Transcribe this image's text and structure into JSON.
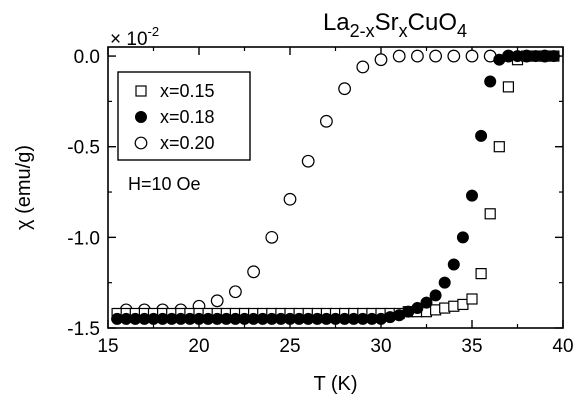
{
  "chart_data": {
    "type": "scatter",
    "title": {
      "parts": [
        {
          "text": "La",
          "shift": "base"
        },
        {
          "text": "2-x",
          "shift": "sub"
        },
        {
          "text": "Sr",
          "shift": "base"
        },
        {
          "text": "x",
          "shift": "sub"
        },
        {
          "text": "CuO",
          "shift": "base"
        },
        {
          "text": "4",
          "shift": "sub"
        }
      ]
    },
    "xlabel": "T (K)",
    "ylabel": "χ (emu/g)",
    "y_multiplier": {
      "prefix": "× 10",
      "exponent": "-2"
    },
    "xlim": [
      15,
      40
    ],
    "ylim": [
      -1.5,
      0.05
    ],
    "x_ticks": [
      15,
      20,
      25,
      30,
      35,
      40
    ],
    "x_tick_labels": [
      "15",
      "20",
      "25",
      "30",
      "35",
      "40"
    ],
    "y_ticks": [
      0.0,
      -0.5,
      -1.0,
      -1.5
    ],
    "y_tick_labels": [
      "0.0",
      "-0.5",
      "-1.0",
      "-1.5"
    ],
    "annotation": "H=10 Oe",
    "legend_position": "upper-left",
    "grid": false,
    "series": [
      {
        "name": "x=0.15",
        "marker": "square-open",
        "color": "#000000",
        "points": [
          [
            15.5,
            -1.42
          ],
          [
            16.0,
            -1.42
          ],
          [
            16.5,
            -1.42
          ],
          [
            17.0,
            -1.42
          ],
          [
            17.5,
            -1.42
          ],
          [
            18.0,
            -1.42
          ],
          [
            18.5,
            -1.42
          ],
          [
            19.0,
            -1.42
          ],
          [
            19.5,
            -1.42
          ],
          [
            20.0,
            -1.42
          ],
          [
            20.5,
            -1.42
          ],
          [
            21.0,
            -1.42
          ],
          [
            21.5,
            -1.42
          ],
          [
            22.0,
            -1.42
          ],
          [
            22.5,
            -1.42
          ],
          [
            23.0,
            -1.42
          ],
          [
            23.5,
            -1.42
          ],
          [
            24.0,
            -1.42
          ],
          [
            24.5,
            -1.42
          ],
          [
            25.0,
            -1.42
          ],
          [
            25.5,
            -1.42
          ],
          [
            26.0,
            -1.42
          ],
          [
            26.5,
            -1.42
          ],
          [
            27.0,
            -1.42
          ],
          [
            27.5,
            -1.42
          ],
          [
            28.0,
            -1.42
          ],
          [
            28.5,
            -1.42
          ],
          [
            29.0,
            -1.42
          ],
          [
            29.5,
            -1.42
          ],
          [
            30.0,
            -1.42
          ],
          [
            30.5,
            -1.42
          ],
          [
            31.0,
            -1.42
          ],
          [
            31.5,
            -1.41
          ],
          [
            32.0,
            -1.41
          ],
          [
            32.5,
            -1.41
          ],
          [
            33.0,
            -1.4
          ],
          [
            33.5,
            -1.39
          ],
          [
            34.0,
            -1.38
          ],
          [
            34.5,
            -1.37
          ],
          [
            35.0,
            -1.34
          ],
          [
            35.5,
            -1.2
          ],
          [
            36.0,
            -0.87
          ],
          [
            36.5,
            -0.5
          ],
          [
            37.0,
            -0.17
          ],
          [
            37.5,
            -0.02
          ],
          [
            38.0,
            0.0
          ],
          [
            38.5,
            0.0
          ],
          [
            39.0,
            0.0
          ],
          [
            39.5,
            0.0
          ]
        ]
      },
      {
        "name": "x=0.18",
        "marker": "circle-filled",
        "color": "#000000",
        "points": [
          [
            15.5,
            -1.45
          ],
          [
            16.0,
            -1.45
          ],
          [
            16.5,
            -1.45
          ],
          [
            17.0,
            -1.45
          ],
          [
            17.5,
            -1.45
          ],
          [
            18.0,
            -1.45
          ],
          [
            18.5,
            -1.45
          ],
          [
            19.0,
            -1.45
          ],
          [
            19.5,
            -1.45
          ],
          [
            20.0,
            -1.45
          ],
          [
            20.5,
            -1.45
          ],
          [
            21.0,
            -1.45
          ],
          [
            21.5,
            -1.45
          ],
          [
            22.0,
            -1.45
          ],
          [
            22.5,
            -1.45
          ],
          [
            23.0,
            -1.45
          ],
          [
            23.5,
            -1.45
          ],
          [
            24.0,
            -1.45
          ],
          [
            24.5,
            -1.45
          ],
          [
            25.0,
            -1.45
          ],
          [
            25.5,
            -1.45
          ],
          [
            26.0,
            -1.45
          ],
          [
            26.5,
            -1.45
          ],
          [
            27.0,
            -1.45
          ],
          [
            27.5,
            -1.45
          ],
          [
            28.0,
            -1.45
          ],
          [
            28.5,
            -1.45
          ],
          [
            29.0,
            -1.45
          ],
          [
            29.5,
            -1.45
          ],
          [
            30.0,
            -1.45
          ],
          [
            30.5,
            -1.44
          ],
          [
            31.0,
            -1.43
          ],
          [
            31.5,
            -1.41
          ],
          [
            32.0,
            -1.39
          ],
          [
            32.5,
            -1.36
          ],
          [
            33.0,
            -1.32
          ],
          [
            33.5,
            -1.25
          ],
          [
            34.0,
            -1.15
          ],
          [
            34.5,
            -1.0
          ],
          [
            35.0,
            -0.77
          ],
          [
            35.5,
            -0.44
          ],
          [
            36.0,
            -0.14
          ],
          [
            36.5,
            -0.02
          ],
          [
            37.0,
            0.0
          ],
          [
            37.5,
            0.0
          ],
          [
            38.0,
            0.0
          ],
          [
            38.5,
            0.0
          ],
          [
            39.0,
            0.0
          ],
          [
            39.5,
            0.0
          ]
        ]
      },
      {
        "name": "x=0.20",
        "marker": "circle-open",
        "color": "#000000",
        "points": [
          [
            16.0,
            -1.4
          ],
          [
            17.0,
            -1.4
          ],
          [
            18.0,
            -1.4
          ],
          [
            19.0,
            -1.4
          ],
          [
            20.0,
            -1.38
          ],
          [
            21.0,
            -1.35
          ],
          [
            22.0,
            -1.3
          ],
          [
            23.0,
            -1.19
          ],
          [
            24.0,
            -1.0
          ],
          [
            25.0,
            -0.79
          ],
          [
            26.0,
            -0.58
          ],
          [
            27.0,
            -0.36
          ],
          [
            28.0,
            -0.18
          ],
          [
            29.0,
            -0.06
          ],
          [
            30.0,
            -0.02
          ],
          [
            31.0,
            0.0
          ],
          [
            32.0,
            0.0
          ],
          [
            33.0,
            0.0
          ],
          [
            34.0,
            0.0
          ],
          [
            35.0,
            0.0
          ],
          [
            36.0,
            0.0
          ],
          [
            37.0,
            0.0
          ],
          [
            38.0,
            0.0
          ],
          [
            39.0,
            0.0
          ]
        ]
      }
    ]
  }
}
